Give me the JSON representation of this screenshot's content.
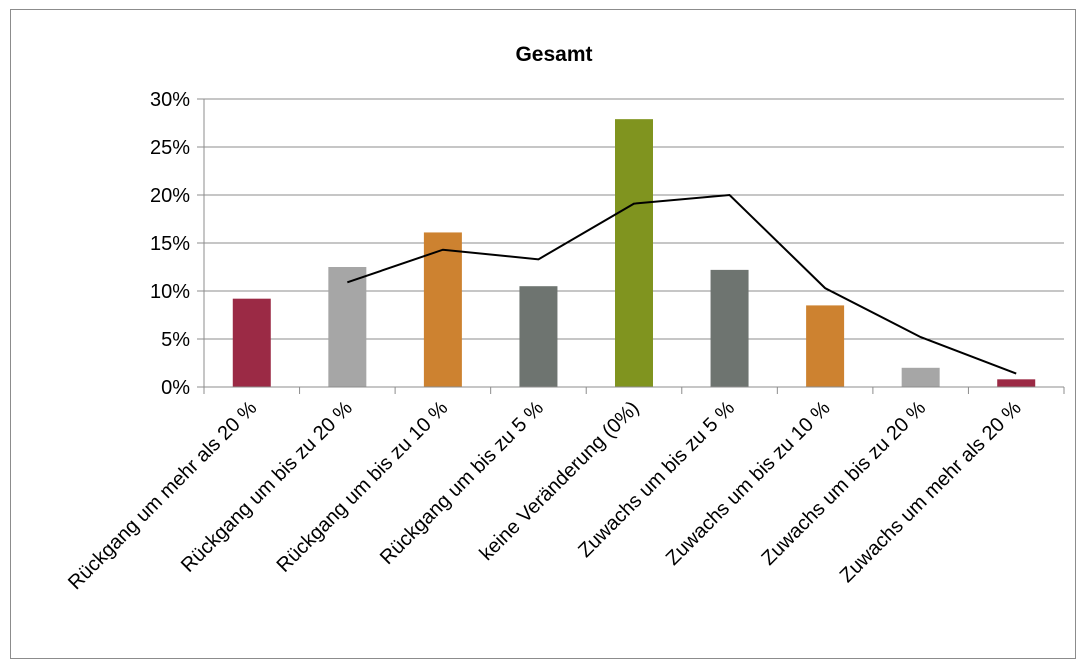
{
  "chart_data": {
    "type": "bar",
    "title": "Gesamt",
    "categories": [
      "Rückgang um mehr als 20 %",
      "Rückgang um bis zu 20 %",
      "Rückgang um bis zu 10 %",
      "Rückgang um bis zu 5 %",
      "keine Veränderung (0%)",
      "Zuwachs um bis zu 5 %",
      "Zuwachs um bis zu 10 %",
      "Zuwachs um bis zu 20 %",
      "Zuwachs um mehr als 20 %"
    ],
    "series": [
      {
        "type": "bar",
        "values": [
          9.2,
          12.5,
          16.1,
          10.5,
          27.9,
          12.2,
          8.5,
          2.0,
          0.8
        ],
        "colors": [
          "#9b2a45",
          "#a6a6a6",
          "#cd8230",
          "#6e7470",
          "#80941f",
          "#6e7470",
          "#cd8230",
          "#a6a6a6",
          "#9b2a45"
        ]
      },
      {
        "type": "line",
        "values": [
          null,
          10.9,
          14.3,
          13.3,
          19.1,
          20.0,
          10.3,
          5.2,
          1.4
        ],
        "color": "#000000"
      }
    ],
    "yticks": [
      "0%",
      "5%",
      "10%",
      "15%",
      "20%",
      "25%",
      "30%"
    ],
    "ylim": [
      0,
      30
    ],
    "grid": true,
    "legend": "none"
  }
}
